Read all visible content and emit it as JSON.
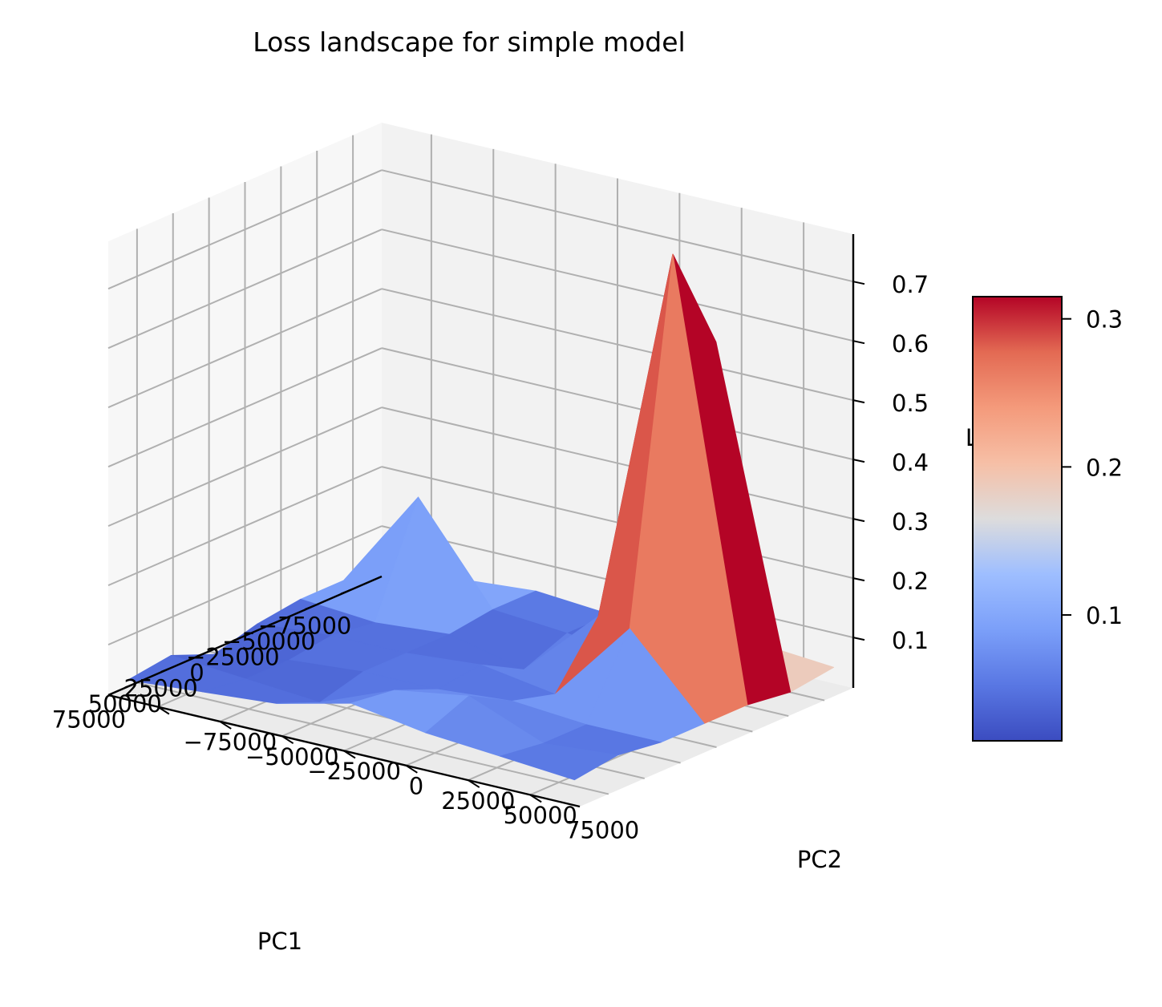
{
  "chart_data": {
    "type": "surface3d",
    "title": "Loss landscape for simple model",
    "xlabel": "PC1",
    "ylabel": "PC2",
    "zlabel": "L",
    "x": [
      -90000,
      -60000,
      -30000,
      0,
      30000,
      60000,
      90000
    ],
    "y": [
      -90000,
      -60000,
      -30000,
      0,
      30000,
      60000,
      90000
    ],
    "z": [
      [
        0.04,
        0.05,
        0.06,
        0.05,
        0.04,
        0.06,
        0.05
      ],
      [
        0.05,
        0.22,
        0.06,
        0.05,
        0.03,
        0.6,
        0.04
      ],
      [
        0.05,
        0.04,
        0.05,
        0.02,
        0.14,
        0.78,
        0.05
      ],
      [
        0.04,
        0.05,
        0.05,
        0.06,
        0.04,
        0.18,
        0.05
      ],
      [
        0.02,
        0.04,
        0.05,
        0.05,
        0.06,
        0.05,
        0.05
      ],
      [
        0.05,
        0.04,
        0.03,
        0.08,
        0.1,
        0.05,
        0.06
      ],
      [
        0.04,
        0.05,
        0.06,
        0.09,
        0.07,
        0.06,
        0.05
      ]
    ],
    "xticks": [
      "−75000",
      "−50000",
      "−25000",
      "0",
      "25000",
      "50000",
      "75000"
    ],
    "xtick_values": [
      -75000,
      -50000,
      -25000,
      0,
      25000,
      50000,
      75000
    ],
    "yticks": [
      "−75000",
      "−50000",
      "−25000",
      "0",
      "25000",
      "50000",
      "75000"
    ],
    "ytick_values": [
      -75000,
      -50000,
      -25000,
      0,
      25000,
      50000,
      75000
    ],
    "zticks": [
      "0.1",
      "0.2",
      "0.3",
      "0.4",
      "0.5",
      "0.6",
      "0.7"
    ],
    "ztick_values": [
      0.1,
      0.2,
      0.3,
      0.4,
      0.5,
      0.6,
      0.7
    ],
    "colorbar": {
      "colormap": "coolwarm",
      "range": [
        0.015,
        0.315
      ],
      "ticks": [
        "0.1",
        "0.2",
        "0.3"
      ],
      "tick_values": [
        0.1,
        0.2,
        0.3
      ]
    },
    "grid": true
  }
}
